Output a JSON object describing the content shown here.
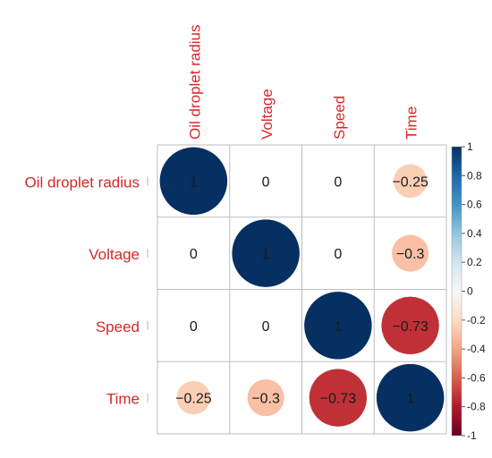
{
  "chart_data": {
    "type": "heatmap",
    "variables": [
      "Oil droplet radius",
      "Voltage",
      "Speed",
      "Time"
    ],
    "matrix": [
      [
        1,
        0,
        0,
        -0.25
      ],
      [
        0,
        1,
        0,
        -0.3
      ],
      [
        0,
        0,
        1,
        -0.73
      ],
      [
        -0.25,
        -0.3,
        -0.73,
        1
      ]
    ],
    "cell_labels": [
      [
        "1",
        "0",
        "0",
        "−0.25"
      ],
      [
        "0",
        "1",
        "0",
        "−0.3"
      ],
      [
        "0",
        "0",
        "1",
        "−0.73"
      ],
      [
        "−0.25",
        "−0.3",
        "−0.73",
        "1"
      ]
    ],
    "colorbar": {
      "range": [
        -1,
        1
      ],
      "ticks": [
        "1",
        "0.8",
        "0.6",
        "0.4",
        "0.2",
        "0",
        "-0.2",
        "-0.4",
        "-0.6",
        "-0.8",
        "-1"
      ]
    },
    "label_color": "#d62728",
    "colors": {
      "strong_positive": "#053061",
      "strong_negative": "#b2182b",
      "neutral": "#f7f7f7",
      "weak_negative": "#f4c0a6",
      "grid": "#bdbdbd"
    }
  }
}
